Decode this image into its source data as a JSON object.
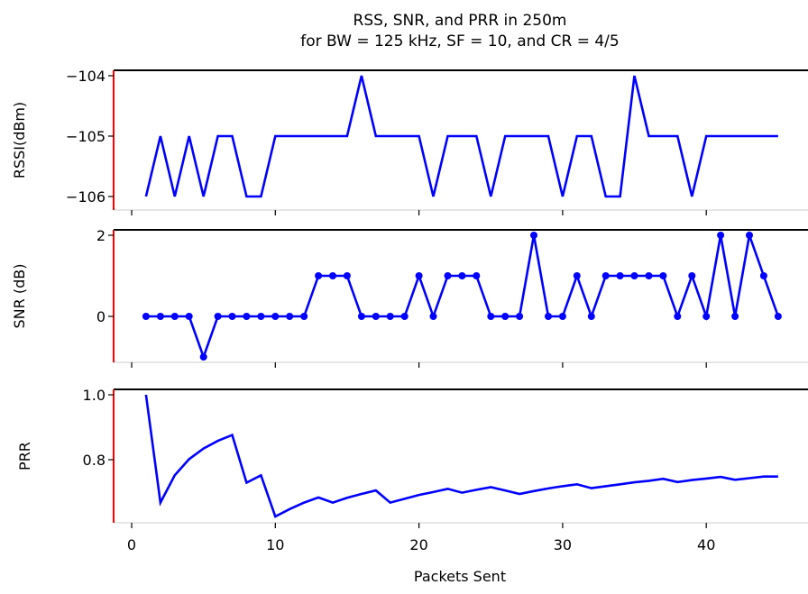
{
  "figure": {
    "title_line1": "RSS, SNR, and PRR in 250m",
    "title_line2": "for BW = 125 kHz, SF = 10, and CR = 4/5",
    "xlabel": "Packets Sent",
    "x_ticks": [
      "0",
      "10",
      "20",
      "30",
      "40"
    ],
    "colors": {
      "series": "#0000ff",
      "left_spine": "#ff0000",
      "top_spine": "#000000",
      "bottom_spine": "#dddddd"
    }
  },
  "chart_data": [
    {
      "type": "line",
      "ylabel": "RSSI(dBm)",
      "y_ticks": [
        "−104",
        "−105",
        "−106"
      ],
      "ylim": [
        -106,
        -104
      ],
      "xlim": [
        -1,
        46
      ],
      "markers": false,
      "x": [
        1,
        2,
        3,
        4,
        5,
        6,
        7,
        8,
        9,
        10,
        11,
        12,
        13,
        14,
        15,
        16,
        17,
        18,
        19,
        20,
        21,
        22,
        23,
        24,
        25,
        26,
        27,
        28,
        29,
        30,
        31,
        32,
        33,
        34,
        35,
        36,
        37,
        38,
        39,
        40,
        41,
        42,
        43,
        44,
        45
      ],
      "values": [
        -106,
        -105,
        -106,
        -105,
        -106,
        -105,
        -105,
        -106,
        -106,
        -105,
        -105,
        -105,
        -105,
        -105,
        -105,
        -104,
        -105,
        -105,
        -105,
        -105,
        -106,
        -105,
        -105,
        -105,
        -106,
        -105,
        -105,
        -105,
        -105,
        -106,
        -105,
        -105,
        -106,
        -106,
        -104,
        -105,
        -105,
        -105,
        -106,
        -105,
        -105,
        -105,
        -105,
        -105,
        -105
      ]
    },
    {
      "type": "line",
      "ylabel": "SNR (dB)",
      "y_ticks": [
        "2",
        "0"
      ],
      "ylim": [
        -1,
        2
      ],
      "xlim": [
        -1,
        46
      ],
      "markers": true,
      "x": [
        1,
        2,
        3,
        4,
        5,
        6,
        7,
        8,
        9,
        10,
        11,
        12,
        13,
        14,
        15,
        16,
        17,
        18,
        19,
        20,
        21,
        22,
        23,
        24,
        25,
        26,
        27,
        28,
        29,
        30,
        31,
        32,
        33,
        34,
        35,
        36,
        37,
        38,
        39,
        40,
        41,
        42,
        43,
        44,
        45
      ],
      "values": [
        0,
        0,
        0,
        0,
        -1,
        0,
        0,
        0,
        0,
        0,
        0,
        0,
        1,
        1,
        1,
        0,
        0,
        0,
        0,
        1,
        0,
        1,
        1,
        1,
        0,
        0,
        0,
        2,
        0,
        0,
        1,
        0,
        1,
        1,
        1,
        1,
        1,
        0,
        1,
        0,
        2,
        0,
        2,
        1,
        0
      ]
    },
    {
      "type": "line",
      "ylabel": "PRR",
      "y_ticks": [
        "1.0",
        "0.8"
      ],
      "ylim": [
        0.622,
        1.0
      ],
      "xlim": [
        -1,
        46
      ],
      "markers": false,
      "x": [
        1,
        2,
        3,
        4,
        5,
        6,
        7,
        8,
        9,
        10,
        11,
        12,
        13,
        14,
        15,
        16,
        17,
        18,
        19,
        20,
        21,
        22,
        23,
        24,
        25,
        26,
        27,
        28,
        29,
        30,
        31,
        32,
        33,
        34,
        35,
        36,
        37,
        38,
        39,
        40,
        41,
        42,
        43,
        44,
        45
      ],
      "values": [
        1.0,
        0.665,
        0.75,
        0.8,
        0.833,
        0.857,
        0.875,
        0.727,
        0.75,
        0.622,
        0.645,
        0.665,
        0.681,
        0.665,
        0.68,
        0.692,
        0.703,
        0.665,
        0.677,
        0.689,
        0.698,
        0.708,
        0.696,
        0.705,
        0.713,
        0.703,
        0.692,
        0.701,
        0.709,
        0.716,
        0.722,
        0.71,
        0.716,
        0.722,
        0.728,
        0.733,
        0.739,
        0.729,
        0.735,
        0.74,
        0.745,
        0.736,
        0.741,
        0.746,
        0.746
      ]
    }
  ]
}
